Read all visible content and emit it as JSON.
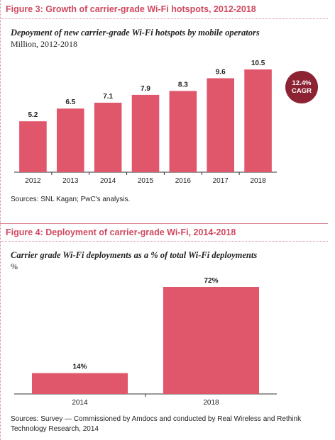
{
  "figure3": {
    "title": "Figure 3: Growth of carrier-grade Wi-Fi hotspots, 2012-2018",
    "subtitle": "Depoyment of new carrier-grade Wi-Fi hotspots by mobile operators",
    "unit": "Million, 2012-2018",
    "cagr_value": "12.4%",
    "cagr_label": "CAGR",
    "source": "Sources: SNL Kagan; PwC's analysis."
  },
  "figure4": {
    "title": "Figure 4: Deployment of carrier-grade Wi-Fi, 2014-2018",
    "subtitle": "Carrier grade Wi-Fi deployments as a % of total Wi-Fi deployments",
    "unit": "%",
    "source": "Sources: Survey — Commissioned by Amdocs and conducted by Real Wireless and Rethink Technology Research, 2014"
  },
  "colors": {
    "bar": "#e0566b",
    "accent": "#d0485f",
    "cagr": "#8c2332"
  },
  "chart_data": [
    {
      "type": "bar",
      "categories": [
        "2012",
        "2013",
        "2014",
        "2015",
        "2016",
        "2017",
        "2018"
      ],
      "values": [
        5.2,
        6.5,
        7.1,
        7.9,
        8.3,
        9.6,
        10.5
      ],
      "labels": [
        "5.2",
        "6.5",
        "7.1",
        "7.9",
        "8.3",
        "9.6",
        "10.5"
      ],
      "title": "Depoyment of new carrier-grade Wi-Fi hotspots by mobile operators",
      "ylabel": "Million, 2012-2018",
      "ylim": [
        0,
        10.5
      ],
      "grid": false
    },
    {
      "type": "bar",
      "categories": [
        "2014",
        "2018"
      ],
      "values": [
        14,
        72
      ],
      "labels": [
        "14%",
        "72%"
      ],
      "title": "Carrier grade Wi-Fi deployments as a % of total Wi-Fi deployments",
      "ylabel": "%",
      "ylim": [
        0,
        72
      ],
      "grid": false
    }
  ]
}
